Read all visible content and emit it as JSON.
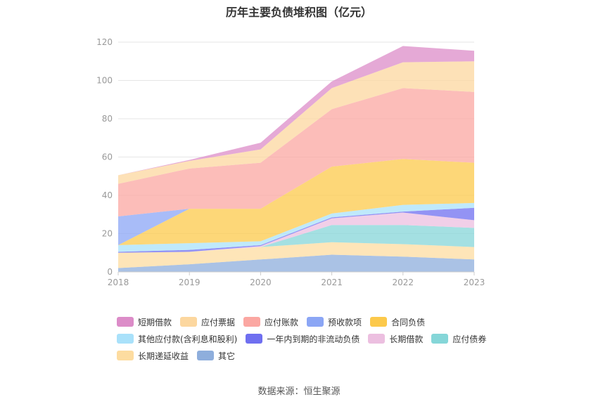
{
  "chart_data": {
    "type": "area",
    "stacked": true,
    "title": "历年主要负债堆积图（亿元）",
    "source": "数据来源：恒生聚源",
    "categories": [
      "2018",
      "2019",
      "2020",
      "2021",
      "2022",
      "2023"
    ],
    "yticks": [
      "0",
      "20",
      "40",
      "60",
      "80",
      "100",
      "120"
    ],
    "ylim": [
      0,
      120
    ],
    "grid": true,
    "legend_position": "bottom",
    "series": [
      {
        "name": "其它",
        "color": "#8eaedc",
        "values": [
          2,
          4,
          6.5,
          9,
          8,
          6.5
        ]
      },
      {
        "name": "长期递延收益",
        "color": "#fddca0",
        "values": [
          8,
          6.5,
          6.5,
          6.5,
          6.5,
          6.5
        ]
      },
      {
        "name": "应付债券",
        "color": "#85d6d8",
        "values": [
          0,
          0,
          0,
          9,
          10,
          10
        ]
      },
      {
        "name": "长期借款",
        "color": "#ecbfe0",
        "values": [
          0,
          0,
          0.5,
          3.5,
          6.5,
          4
        ]
      },
      {
        "name": "一年内到期的非流动负债",
        "color": "#6f6ff0",
        "values": [
          0.5,
          1,
          0.5,
          0.5,
          0.5,
          6.5
        ]
      },
      {
        "name": "其他应付款(含利息和股利)",
        "color": "#a9e1fa",
        "values": [
          3.5,
          3.5,
          2,
          2,
          3.5,
          2.5
        ]
      },
      {
        "name": "合同负债",
        "color": "#fcc94b",
        "values": [
          0,
          18,
          17,
          24.5,
          24,
          21
        ]
      },
      {
        "name": "预收款项",
        "color": "#8ba6f5",
        "values": [
          15,
          0,
          0,
          0,
          0,
          0
        ]
      },
      {
        "name": "应付账款",
        "color": "#fba7a2",
        "values": [
          17,
          21,
          24,
          30,
          37,
          37
        ]
      },
      {
        "name": "应付票据",
        "color": "#fcd79f",
        "values": [
          4.5,
          4,
          7,
          11,
          13.5,
          16
        ]
      },
      {
        "name": "短期借款",
        "color": "#dc8cc8",
        "values": [
          0,
          0.5,
          3.5,
          3.5,
          8.5,
          5.5
        ]
      }
    ],
    "legend_order": [
      "短期借款",
      "应付票据",
      "应付账款",
      "预收款项",
      "合同负债",
      "其他应付款(含利息和股利)",
      "一年内到期的非流动负债",
      "长期借款",
      "应付债券",
      "长期递延收益",
      "其它"
    ]
  }
}
